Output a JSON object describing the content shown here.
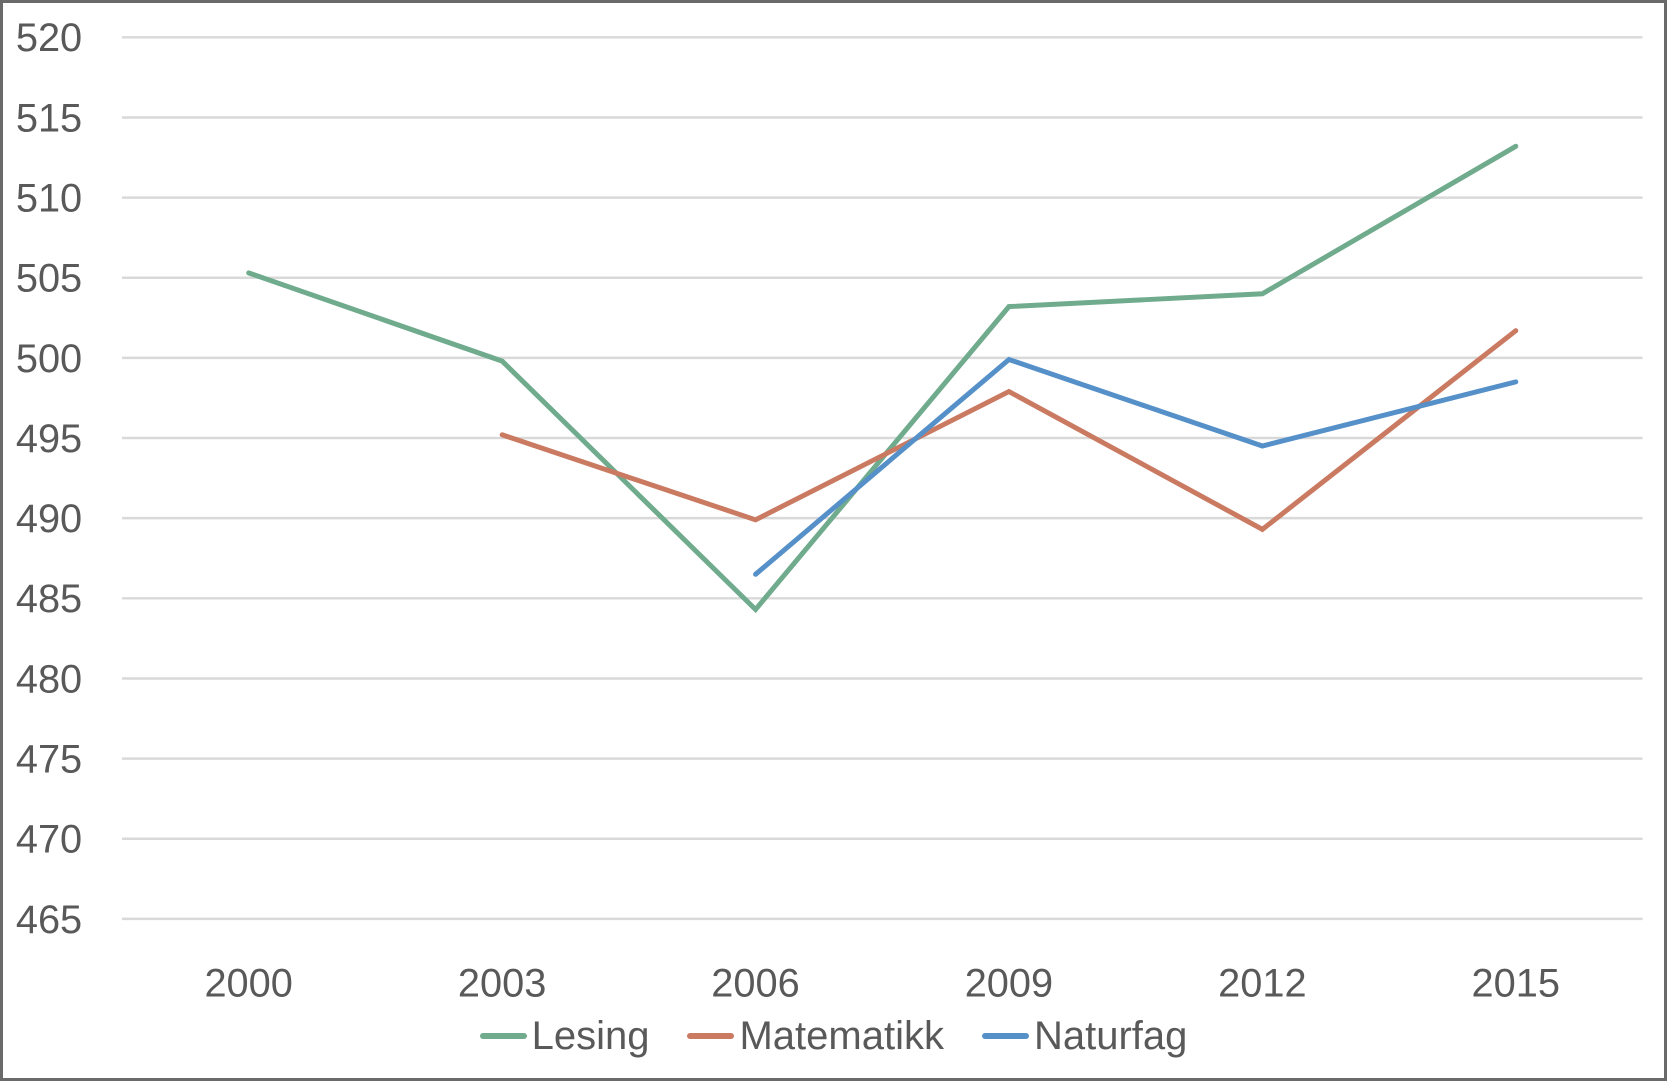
{
  "chart_data": {
    "type": "line",
    "title": "",
    "xlabel": "",
    "ylabel": "",
    "categories": [
      "2000",
      "2003",
      "2006",
      "2009",
      "2012",
      "2015"
    ],
    "series": [
      {
        "name": "Lesing",
        "color": "#6FAB8C",
        "values": [
          505.3,
          499.8,
          484.3,
          503.2,
          504.0,
          513.2
        ]
      },
      {
        "name": "Matematikk",
        "color": "#CB7A62",
        "values": [
          null,
          495.2,
          489.9,
          497.9,
          489.3,
          501.7
        ]
      },
      {
        "name": "Naturfag",
        "color": "#5590C9",
        "values": [
          null,
          null,
          486.5,
          499.9,
          494.5,
          498.5
        ]
      }
    ],
    "ylim": [
      465,
      520
    ],
    "y_tick_step": 5,
    "y_ticks": [
      520,
      515,
      510,
      505,
      500,
      495,
      490,
      485,
      480,
      475,
      470,
      465
    ],
    "x_ticks": [
      "2000",
      "2003",
      "2006",
      "2009",
      "2012",
      "2015"
    ],
    "grid": "horizontal",
    "legend_position": "bottom",
    "legend": [
      "Lesing",
      "Matematikk",
      "Naturfag"
    ]
  },
  "styles": {
    "background": "#FFFFFF",
    "frame_border_color": "#6A6A6A",
    "gridline_color": "#D9D9D9",
    "axis_label_color": "#595959",
    "line_width": 5
  }
}
